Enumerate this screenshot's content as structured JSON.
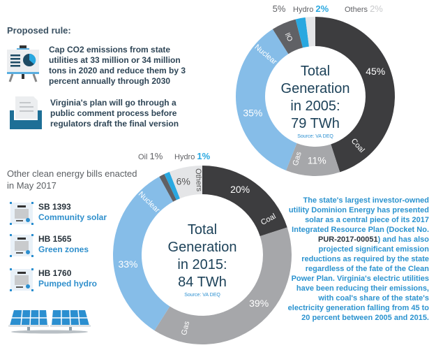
{
  "proposed": {
    "heading": "Proposed rule:",
    "items": [
      {
        "icon": "presentation-board-icon",
        "text": "Cap CO2 emissions from state utilities at 33 million or 34 million tons in 2020 and reduce them by 3 percent annually through 2030"
      },
      {
        "icon": "inbox-document-icon",
        "text": "Virginia's plan will go through a public comment process before regulators draft the final version"
      }
    ]
  },
  "bills": {
    "heading": "Other clean energy bills enacted in May 2017",
    "items": [
      {
        "id": "SB 1393",
        "name": "Community solar"
      },
      {
        "id": "HB 1565",
        "name": "Green zones"
      },
      {
        "id": "HB 1760",
        "name": "Pumped hydro"
      }
    ]
  },
  "note": {
    "before": "The state's largest investor-owned utility Dominion Energy has presented solar as a central piece of its 2017 Integrated Resource Plan (Docket No. ",
    "docket": "PUR-2017-00051",
    "after": ") and has also projected significant emission reductions as required by the state regardless of the fate of the Clean Power Plan. Virginia's electric utilities have been reducing their emissions, with coal's share of the state's electricity generation falling from 45 to 20 percent between 2005 and 2015."
  },
  "colors": {
    "Coal": "#3d3d3f",
    "Gas": "#a6a7aa",
    "Nuclear": "#86bde8",
    "Oil": "#606165",
    "Hydro": "#29a8e0",
    "Others": "#e4e5e7"
  },
  "chart_data": [
    {
      "type": "pie",
      "title_lines": [
        "Total",
        "Generation",
        "in 2005:",
        "79 TWh"
      ],
      "source": "Source: VA DEQ",
      "categories": [
        "Coal",
        "Gas",
        "Nuclear",
        "Oil",
        "Hydro",
        "Others"
      ],
      "values": [
        45,
        11,
        35,
        5,
        2,
        2
      ],
      "labels": [
        "45%",
        "11%",
        "35%",
        "5%",
        "2%",
        "2%"
      ]
    },
    {
      "type": "pie",
      "title_lines": [
        "Total",
        "Generation",
        "in 2015:",
        "84 TWh"
      ],
      "source": "Source: VA DEQ",
      "categories": [
        "Coal",
        "Gas",
        "Nuclear",
        "Oil",
        "Hydro",
        "Others"
      ],
      "values": [
        20,
        39,
        33,
        1,
        1,
        6
      ],
      "labels": [
        "20%",
        "39%",
        "33%",
        "1%",
        "1%",
        "6%"
      ]
    }
  ]
}
